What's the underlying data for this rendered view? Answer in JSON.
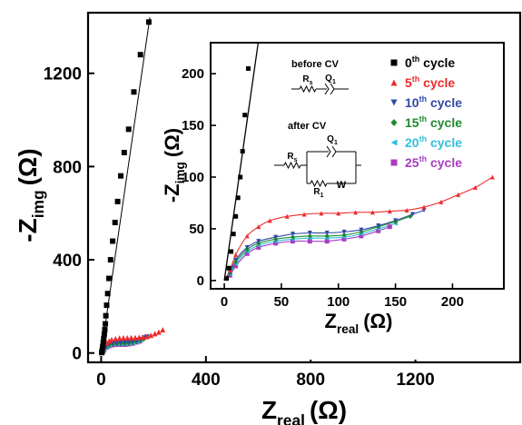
{
  "chart_data": [
    {
      "type": "scatter",
      "panel": "main",
      "xlabel": {
        "base": "Z",
        "sub": "real",
        "unit": "(Ω)"
      },
      "ylabel": {
        "base": "-Z",
        "sub": "img",
        "unit": "(Ω)"
      },
      "xlim": [
        -50,
        1600
      ],
      "ylim": [
        -40,
        1460
      ],
      "xticks": [
        0,
        400,
        800,
        1200
      ],
      "yticks": [
        0,
        400,
        800,
        1200
      ],
      "legend_placement": "inset",
      "series": [
        {
          "name_base": "0",
          "name_sup": "th",
          "name_rest": " cycle",
          "color": "#000000",
          "marker": "square",
          "x": [
            2,
            4,
            6,
            8,
            10,
            12,
            14,
            16,
            18,
            21,
            25,
            30,
            36,
            44,
            53,
            63,
            75,
            88,
            105,
            125,
            150,
            182
          ],
          "y": [
            2,
            12,
            28,
            45,
            62,
            80,
            100,
            125,
            160,
            205,
            255,
            320,
            400,
            480,
            560,
            650,
            760,
            860,
            960,
            1120,
            1280,
            1420
          ],
          "fit_line": [
            [
              0,
              0
            ],
            [
              186,
              1440
            ]
          ]
        },
        {
          "name_base": "5",
          "name_sup": "th",
          "name_rest": " cycle",
          "color": "#ee2b2b",
          "marker": "triangle-up",
          "x": [
            5,
            10,
            20,
            30,
            40,
            55,
            70,
            85,
            100,
            115,
            130,
            145,
            160,
            175,
            190,
            205,
            220,
            235
          ],
          "y": [
            10,
            25,
            43,
            52,
            58,
            62,
            64,
            65,
            65,
            66,
            66,
            67,
            68,
            71,
            76,
            83,
            90,
            100
          ]
        },
        {
          "name_base": "10",
          "name_sup": "th",
          "name_rest": " cycle",
          "color": "#3048a8",
          "marker": "triangle-down",
          "x": [
            5,
            10,
            20,
            30,
            45,
            60,
            75,
            90,
            105,
            120,
            135,
            150,
            165,
            175
          ],
          "y": [
            8,
            20,
            32,
            38,
            42,
            45,
            46,
            46,
            47,
            49,
            53,
            58,
            64,
            68
          ]
        },
        {
          "name_base": "15",
          "name_sup": "th",
          "name_rest": " cycle",
          "color": "#1f8a2e",
          "marker": "diamond",
          "x": [
            5,
            10,
            20,
            30,
            45,
            60,
            75,
            90,
            105,
            120,
            135,
            150,
            163
          ],
          "y": [
            7,
            18,
            30,
            36,
            40,
            42,
            43,
            43,
            44,
            47,
            52,
            57,
            62
          ]
        },
        {
          "name_base": "20",
          "name_sup": "th",
          "name_rest": " cycle",
          "color": "#2fc0dc",
          "marker": "triangle-left",
          "x": [
            5,
            10,
            20,
            30,
            45,
            60,
            75,
            90,
            105,
            120,
            135,
            150
          ],
          "y": [
            6,
            16,
            28,
            34,
            38,
            40,
            41,
            41,
            42,
            45,
            50,
            55
          ]
        },
        {
          "name_base": "25",
          "name_sup": "th",
          "name_rest": " cycle",
          "color": "#a83cc0",
          "marker": "square",
          "x": [
            5,
            10,
            20,
            30,
            45,
            60,
            75,
            90,
            105,
            120,
            135,
            145
          ],
          "y": [
            5,
            14,
            26,
            32,
            36,
            38,
            38,
            38,
            40,
            43,
            48,
            52
          ]
        }
      ]
    },
    {
      "type": "scatter",
      "panel": "inset",
      "xlabel": {
        "base": "Z",
        "sub": "real",
        "unit": "(Ω)"
      },
      "ylabel": {
        "base": "-Z",
        "sub": "img",
        "unit": "(Ω)"
      },
      "xlim": [
        -12,
        245
      ],
      "ylim": [
        -8,
        230
      ],
      "xticks": [
        0,
        50,
        100,
        150,
        200
      ],
      "yticks": [
        0,
        50,
        100,
        150,
        200
      ],
      "legend_placement": "top-right",
      "circuits": {
        "before_label": "before CV",
        "after_label": "after CV",
        "r_s": "R",
        "r_s_sub": "s",
        "q1": "Q",
        "q1_sub": "1",
        "r1": "R",
        "r1_sub": "1",
        "w": "W"
      }
    }
  ]
}
